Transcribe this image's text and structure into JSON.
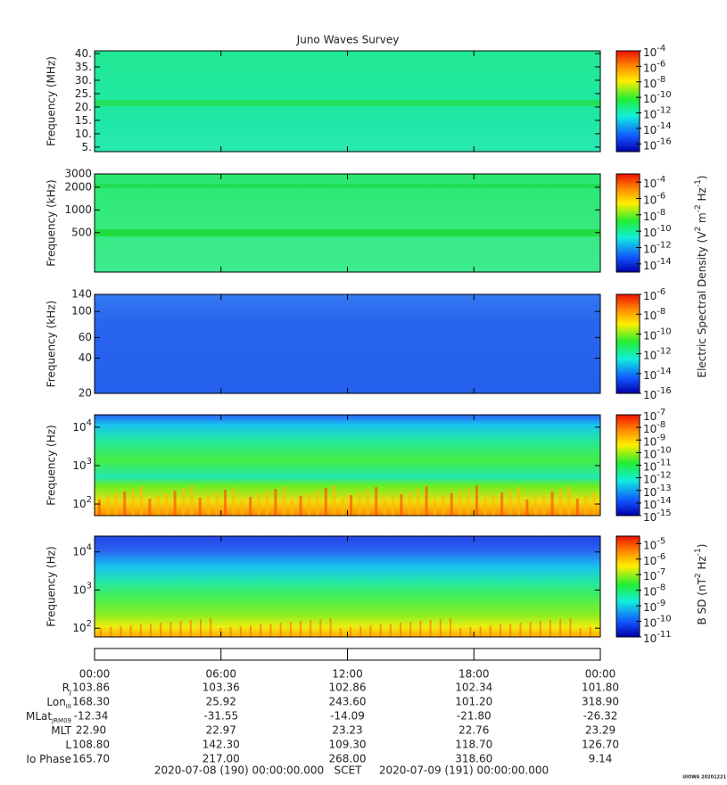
{
  "title": "Juno Waves Survey",
  "chart_data": [
    {
      "type": "heatmap",
      "ylabel": "Frequency (MHz)",
      "yscale": "linear",
      "ylim": [
        3.3,
        41
      ],
      "yticks": [
        {
          "value": 5,
          "label": "5."
        },
        {
          "value": 10,
          "label": "10."
        },
        {
          "value": 15,
          "label": "15."
        },
        {
          "value": 20,
          "label": "20."
        },
        {
          "value": 25,
          "label": "25."
        },
        {
          "value": 30,
          "label": "30."
        },
        {
          "value": 35,
          "label": "35."
        },
        {
          "value": 40,
          "label": "40."
        }
      ],
      "colorbar": {
        "zscale": "log",
        "zlim": [
          1e-17,
          0.0001
        ],
        "zticks": [
          {
            "value": 0.0001,
            "label": "10",
            "exponent": "-4"
          },
          {
            "value": 1e-06,
            "label": "10",
            "exponent": "-6"
          },
          {
            "value": 1e-08,
            "label": "10",
            "exponent": "-8"
          },
          {
            "value": 1e-10,
            "label": "10",
            "exponent": "-10"
          },
          {
            "value": 1e-12,
            "label": "10",
            "exponent": "-12"
          },
          {
            "value": 1e-14,
            "label": "10",
            "exponent": "-14"
          },
          {
            "value": 1e-16,
            "label": "10",
            "exponent": "-16"
          }
        ]
      }
    },
    {
      "type": "heatmap",
      "ylabel": "Frequency (kHz)",
      "yscale": "log",
      "ylim": [
        150,
        3000
      ],
      "yticks": [
        500,
        1000,
        2000,
        3000
      ],
      "colorbar": {
        "zscale": "log",
        "zlim": [
          1e-15,
          0.001
        ],
        "zticks": [
          {
            "value": 0.0001,
            "label": "10",
            "exponent": "-4"
          },
          {
            "value": 1e-06,
            "label": "10",
            "exponent": "-6"
          },
          {
            "value": 1e-08,
            "label": "10",
            "exponent": "-8"
          },
          {
            "value": 1e-10,
            "label": "10",
            "exponent": "-10"
          },
          {
            "value": 1e-12,
            "label": "10",
            "exponent": "-12"
          },
          {
            "value": 1e-14,
            "label": "10",
            "exponent": "-14"
          }
        ]
      }
    },
    {
      "type": "heatmap",
      "ylabel": "Frequency (kHz)",
      "yscale": "log",
      "ylim": [
        20,
        140
      ],
      "yticks": [
        20,
        40,
        60,
        100,
        140
      ],
      "colorbar": {
        "zscale": "log",
        "zlim": [
          1e-16,
          1e-06
        ],
        "zticks": [
          {
            "value": 1e-06,
            "label": "10",
            "exponent": "-6"
          },
          {
            "value": 1e-08,
            "label": "10",
            "exponent": "-8"
          },
          {
            "value": 1e-10,
            "label": "10",
            "exponent": "-10"
          },
          {
            "value": 1e-12,
            "label": "10",
            "exponent": "-12"
          },
          {
            "value": 1e-14,
            "label": "10",
            "exponent": "-14"
          },
          {
            "value": 1e-16,
            "label": "10",
            "exponent": "-16"
          }
        ]
      }
    },
    {
      "type": "heatmap",
      "ylabel": "Frequency (Hz)",
      "yscale": "log",
      "ylim": [
        50,
        21000
      ],
      "yticks": [
        {
          "value": 100,
          "label": "10",
          "exponent": "2"
        },
        {
          "value": 1000,
          "label": "10",
          "exponent": "3"
        },
        {
          "value": 10000,
          "label": "10",
          "exponent": "4"
        }
      ],
      "colorbar": {
        "zscale": "log",
        "zlim": [
          1e-15,
          1e-07
        ],
        "zticks": [
          {
            "value": 1e-07,
            "label": "10",
            "exponent": "-7"
          },
          {
            "value": 1e-08,
            "label": "10",
            "exponent": "-8"
          },
          {
            "value": 1e-09,
            "label": "10",
            "exponent": "-9"
          },
          {
            "value": 1e-10,
            "label": "10",
            "exponent": "-10"
          },
          {
            "value": 1e-11,
            "label": "10",
            "exponent": "-11"
          },
          {
            "value": 1e-12,
            "label": "10",
            "exponent": "-12"
          },
          {
            "value": 1e-13,
            "label": "10",
            "exponent": "-13"
          },
          {
            "value": 1e-14,
            "label": "10",
            "exponent": "-14"
          },
          {
            "value": 1e-15,
            "label": "10",
            "exponent": "-15"
          }
        ]
      }
    },
    {
      "type": "heatmap",
      "ylabel": "Frequency (Hz)",
      "yscale": "log",
      "ylim": [
        59,
        26000
      ],
      "yticks": [
        {
          "value": 100,
          "label": "10",
          "exponent": "2"
        },
        {
          "value": 1000,
          "label": "10",
          "exponent": "3"
        },
        {
          "value": 10000,
          "label": "10",
          "exponent": "4"
        }
      ],
      "colorbar": {
        "zscale": "log",
        "zlim": [
          1e-11,
          3e-05
        ],
        "zticks": [
          {
            "value": 1e-05,
            "label": "10",
            "exponent": "-5"
          },
          {
            "value": 1e-06,
            "label": "10",
            "exponent": "-6"
          },
          {
            "value": 1e-07,
            "label": "10",
            "exponent": "-7"
          },
          {
            "value": 1e-08,
            "label": "10",
            "exponent": "-8"
          },
          {
            "value": 1e-09,
            "label": "10",
            "exponent": "-9"
          },
          {
            "value": 1e-10,
            "label": "10",
            "exponent": "-10"
          },
          {
            "value": 1e-11,
            "label": "10",
            "exponent": "-11"
          }
        ]
      }
    }
  ],
  "colorbar_titles": [
    [
      {
        "text": "Electric Spectral Density (V"
      },
      {
        "sup": "2"
      },
      {
        "text": " m"
      },
      {
        "sup": "-2"
      },
      {
        "text": " Hz"
      },
      {
        "sup": "-1"
      },
      {
        "text": ")"
      }
    ],
    [
      {
        "text": "B SD (nT"
      },
      {
        "sup": "2"
      },
      {
        "text": " Hz"
      },
      {
        "sup": "-1"
      },
      {
        "text": ")"
      }
    ]
  ],
  "time_axis": {
    "xlim": [
      0,
      24
    ],
    "ticks": [
      {
        "value": 0,
        "label": "00:00"
      },
      {
        "value": 6,
        "label": "06:00"
      },
      {
        "value": 12,
        "label": "12:00"
      },
      {
        "value": 18,
        "label": "18:00"
      },
      {
        "value": 24,
        "label": "00:00"
      }
    ]
  },
  "ephemeris": [
    {
      "label": "R",
      "sub": "J",
      "values": [
        "103.86",
        "103.36",
        "102.86",
        "102.34",
        "101.80"
      ]
    },
    {
      "label": "Lon",
      "sub": "III",
      "values": [
        "168.30",
        "25.92",
        "243.60",
        "101.20",
        "318.90"
      ]
    },
    {
      "label": "MLat",
      "sub": "JRM09",
      "values": [
        "-12.34",
        "-31.55",
        "-14.09",
        "-21.80",
        "-26.32"
      ]
    },
    {
      "label": "MLT",
      "values": [
        "22.90",
        "22.97",
        "23.23",
        "22.76",
        "23.29"
      ]
    },
    {
      "label": "L",
      "values": [
        "108.80",
        "142.30",
        "109.30",
        "118.70",
        "126.70"
      ]
    },
    {
      "label": "Io Phase",
      "values": [
        "165.70",
        "217.00",
        "268.00",
        "318.60",
        "9.14"
      ]
    }
  ],
  "footer": {
    "start": "2020-07-08 (190) 00:00:00.000",
    "scet": "SCET",
    "end": "2020-07-09 (191) 00:00:00.000"
  },
  "credit": "UIOWA 20201221"
}
